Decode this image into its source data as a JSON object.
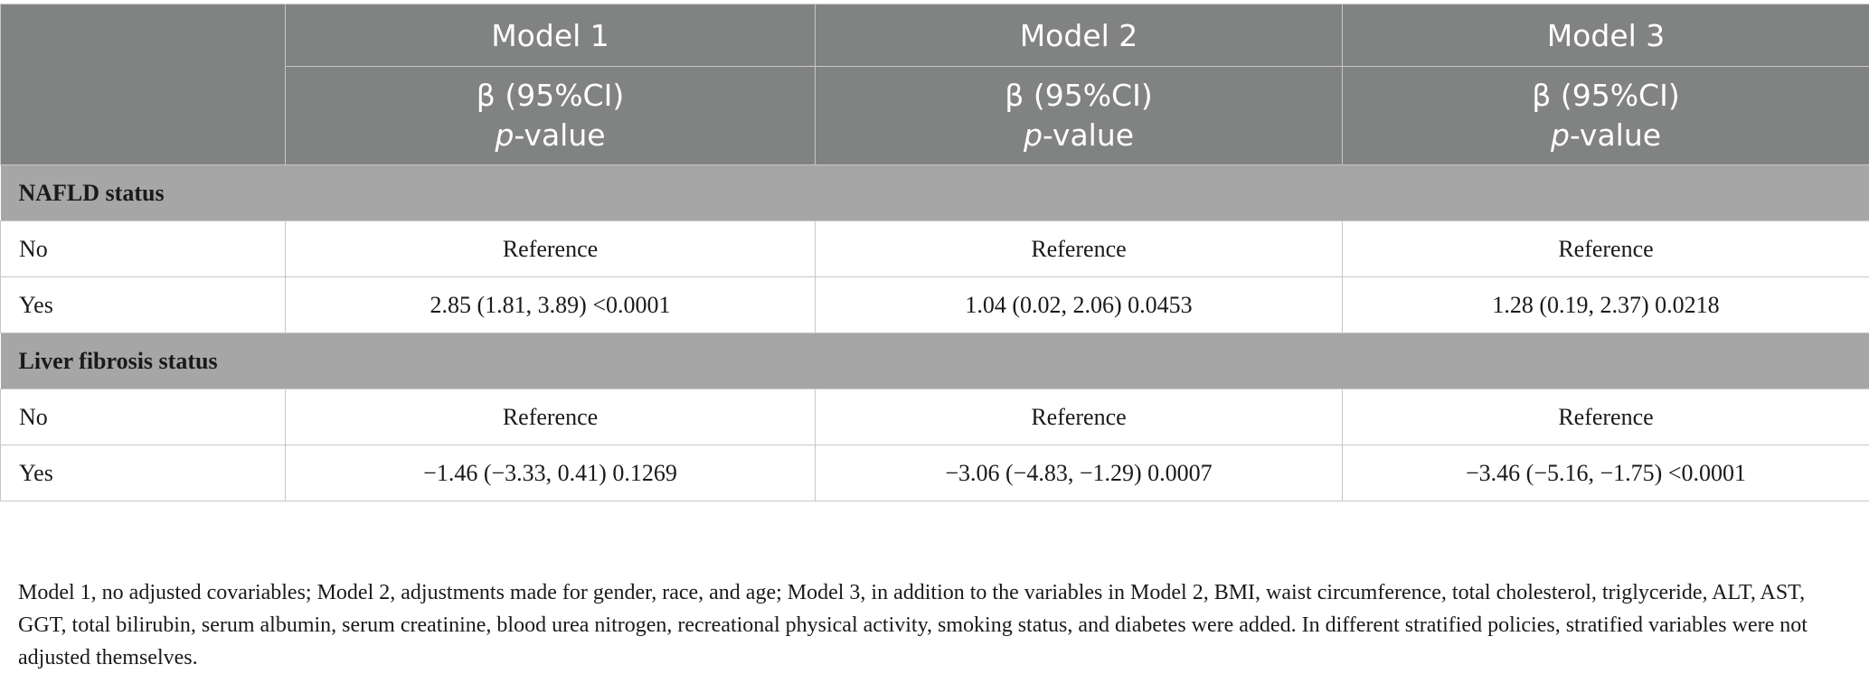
{
  "table": {
    "header": {
      "models": [
        "Model 1",
        "Model 2",
        "Model 3"
      ],
      "beta_label": "β (95%CI)",
      "p_italic": "p",
      "p_suffix": "-value"
    },
    "sections": [
      {
        "title": "NAFLD status",
        "rows": [
          {
            "label": "No",
            "values": [
              "Reference",
              "Reference",
              "Reference"
            ]
          },
          {
            "label": "Yes",
            "values": [
              "2.85 (1.81, 3.89) <0.0001",
              "1.04 (0.02, 2.06) 0.0453",
              "1.28 (0.19, 2.37) 0.0218"
            ]
          }
        ]
      },
      {
        "title": "Liver fibrosis status",
        "rows": [
          {
            "label": "No",
            "values": [
              "Reference",
              "Reference",
              "Reference"
            ]
          },
          {
            "label": "Yes",
            "values": [
              "−1.46 (−3.33, 0.41) 0.1269",
              "−3.06 (−4.83, −1.29) 0.0007",
              "−3.46 (−5.16, −1.75) <0.0001"
            ]
          }
        ]
      }
    ]
  },
  "footnote": "Model 1, no adjusted covariables; Model 2, adjustments made for gender, race, and age; Model 3, in addition to the variables in Model 2, BMI, waist circumference, total cholesterol, triglyceride, ALT, AST, GGT, total bilirubin, serum albumin, serum creatinine, blood urea nitrogen, recreational physical activity, smoking status, and diabetes were added. In different stratified policies, stratified variables were not adjusted themselves."
}
